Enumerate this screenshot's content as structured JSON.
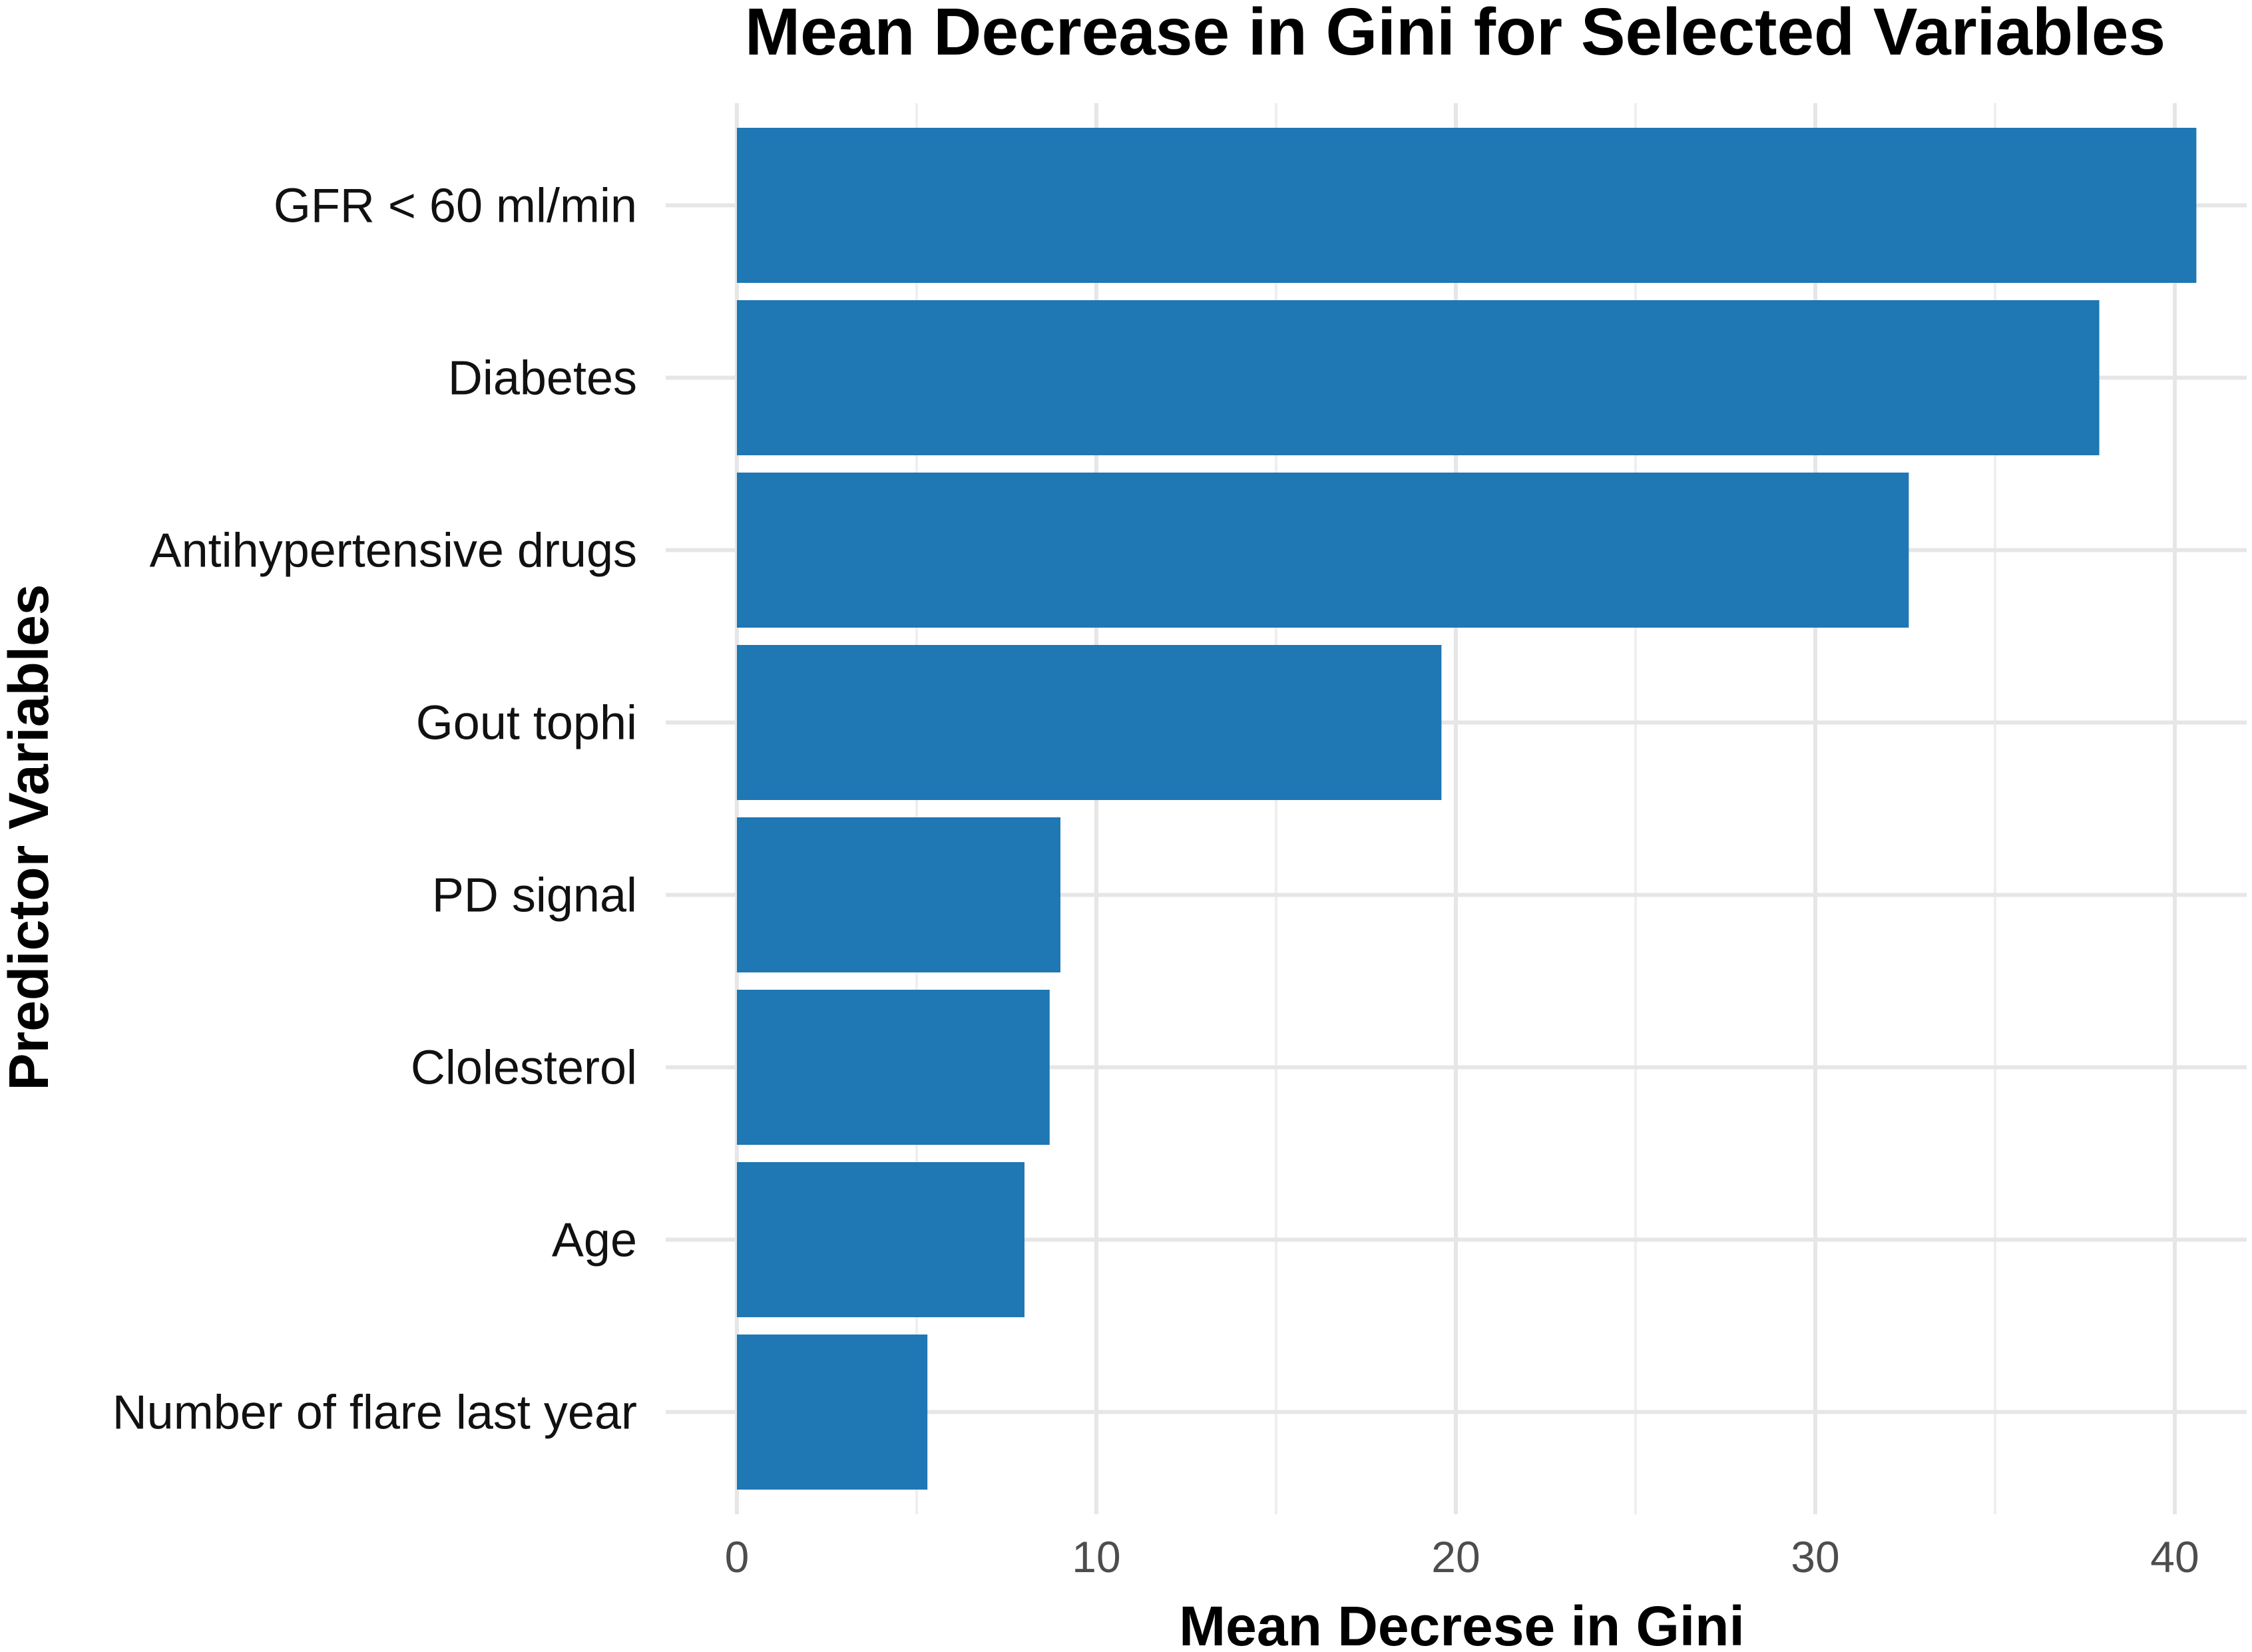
{
  "chart_data": {
    "type": "bar",
    "orientation": "horizontal",
    "title": "Mean Decrease in Gini for Selected Variables",
    "xlabel": "Mean Decrese in Gini",
    "ylabel": "Predictor Variables",
    "xlim": [
      0,
      42
    ],
    "xticks": [
      "0",
      "10",
      "20",
      "30",
      "40"
    ],
    "grid": true,
    "bar_color": "#1F77B4",
    "categories": [
      "GFR < 60 ml/min",
      "Diabetes",
      "Antihypertensive drugs",
      "Gout tophi",
      "PD signal",
      "Clolesterol",
      "Age",
      "Number of flare last year"
    ],
    "values": [
      40.6,
      37.9,
      32.6,
      19.6,
      9.0,
      8.7,
      8.0,
      5.3
    ]
  }
}
